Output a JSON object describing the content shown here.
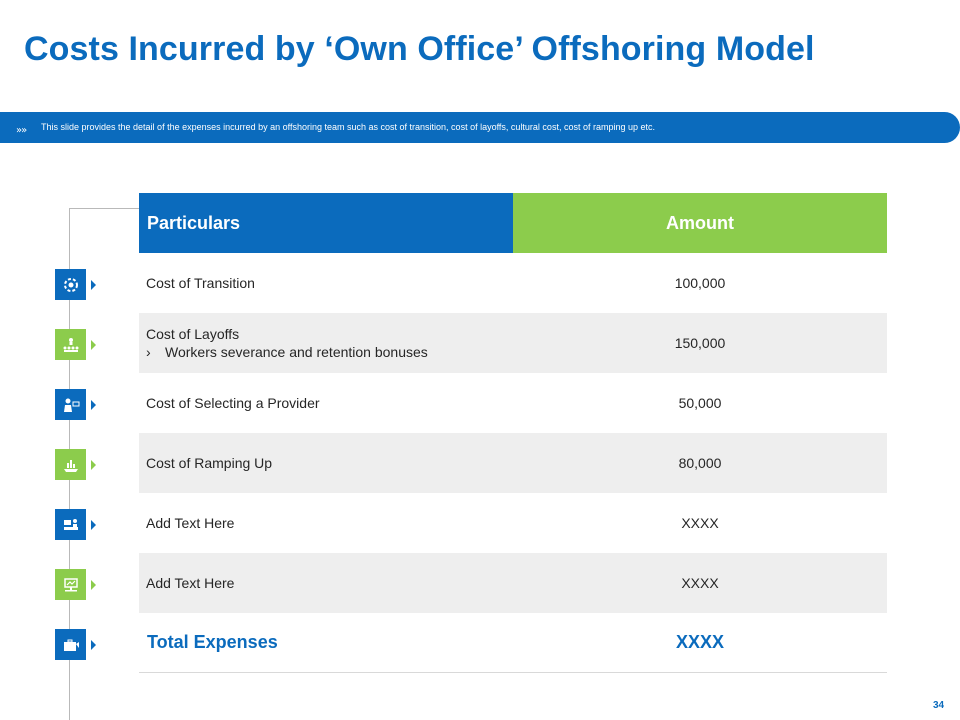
{
  "title": "Costs Incurred by ‘Own Office’ Offshoring Model",
  "banner": {
    "chevron": "»»",
    "text": "This slide provides the detail of the expenses incurred by an offshoring team such as cost of transition, cost of layoffs, cultural cost, cost of ramping up etc."
  },
  "table": {
    "headers": {
      "particulars": "Particulars",
      "amount": "Amount"
    },
    "rows": [
      {
        "label": "Cost of Transition",
        "amount": "100,000",
        "icon": "gear-refresh-icon",
        "color": "#0b6bbd"
      },
      {
        "label": "Cost of Layoffs",
        "sub_marker": "›",
        "sub": "Workers severance and retention bonuses",
        "amount": "150,000",
        "icon": "team-hierarchy-icon",
        "color": "#8ccc4c"
      },
      {
        "label": "Cost of Selecting a Provider",
        "amount": "50,000",
        "icon": "presenter-icon",
        "color": "#0b6bbd"
      },
      {
        "label": "Cost of Ramping Up",
        "amount": "80,000",
        "icon": "growth-hand-icon",
        "color": "#8ccc4c"
      },
      {
        "label": "Add Text Here",
        "amount": "XXXX",
        "icon": "desk-person-icon",
        "color": "#0b6bbd"
      },
      {
        "label": "Add Text Here",
        "amount": "XXXX",
        "icon": "monitor-chart-icon",
        "color": "#8ccc4c"
      }
    ],
    "total": {
      "label": "Total Expenses",
      "amount": "XXXX",
      "icon": "briefcase-icon",
      "color": "#0b6bbd"
    }
  },
  "page_number": "34",
  "colors": {
    "primary_blue": "#0b6bbd",
    "accent_green": "#8ccc4c",
    "row_shade": "#eeeeee"
  }
}
